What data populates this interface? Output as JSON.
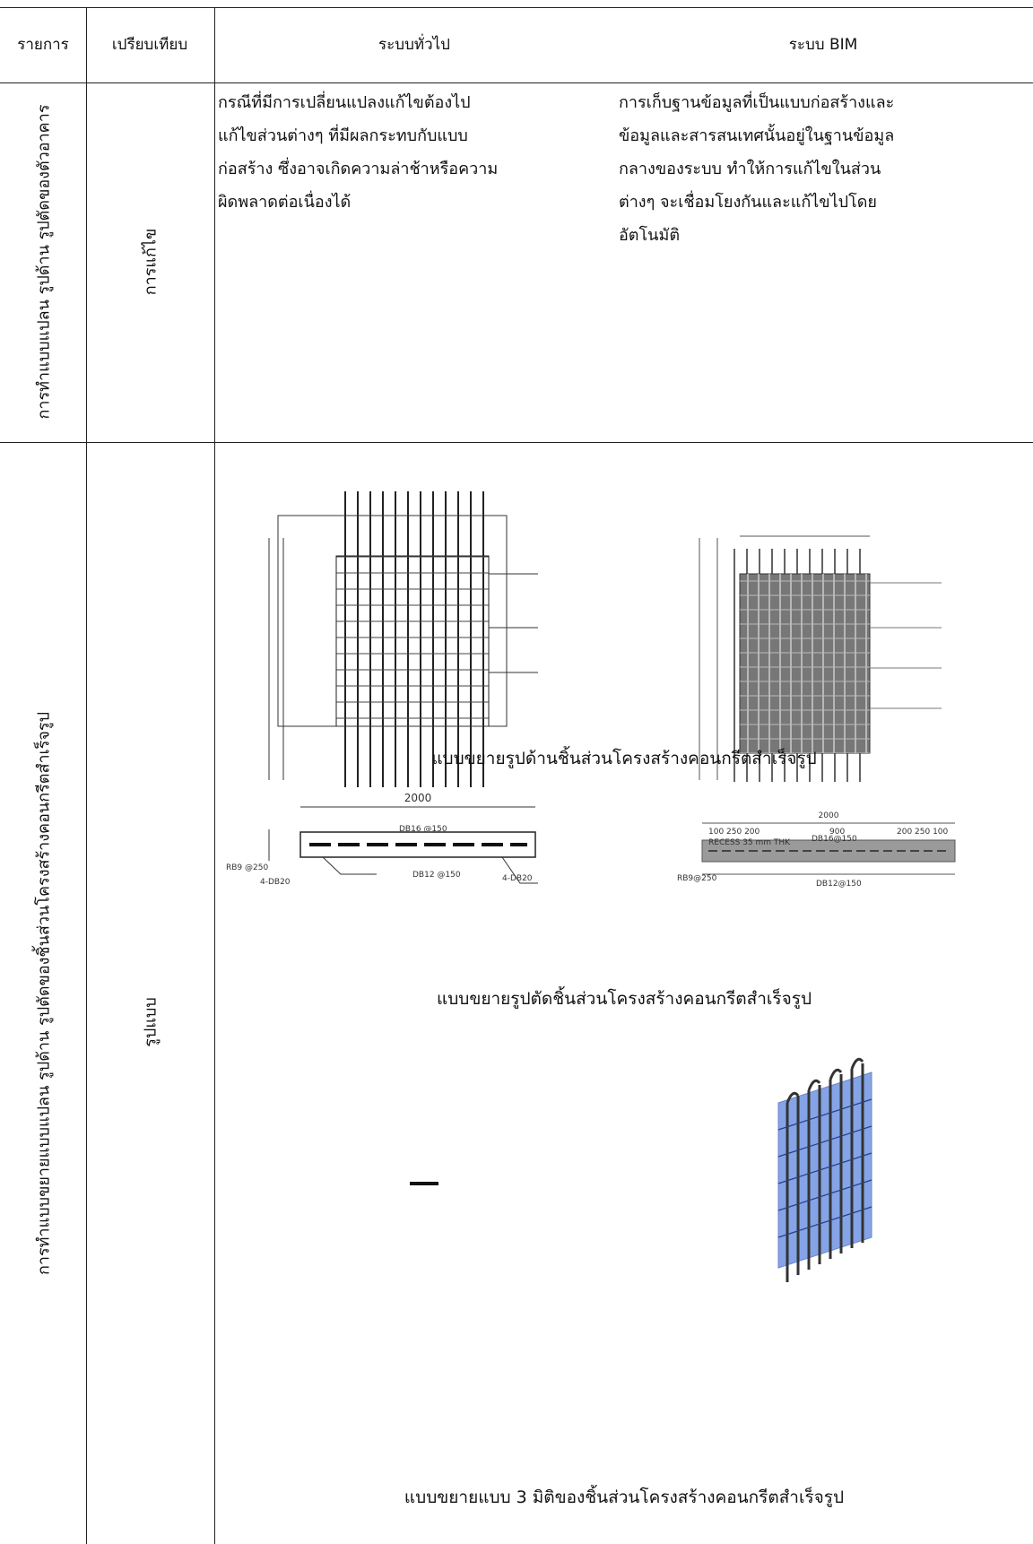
{
  "table": {
    "headers": [
      "รายการ",
      "เปรียบเทียบ",
      "ระบบทั่วไป",
      "ระบบ BIM"
    ],
    "rows": [
      {
        "item": "การทำแบบแปลน รูปด้าน รูปตัดของตัวอาคาร",
        "aspect": "การแก้ไข",
        "general": [
          "กรณีที่มีการเปลี่ยนแปลงแก้ไขต้องไป",
          "แก้ไขส่วนต่างๆ ที่มีผลกระทบกับแบบ",
          "ก่อสร้าง ซึ่งอาจเกิดความล่าช้าหรือความ",
          "ผิดพลาดต่อเนื่องได้"
        ],
        "bim": [
          "การเก็บฐานข้อมูลที่เป็นแบบก่อสร้างและ",
          "ข้อมูลและสารสนเทศนั้นอยู่ในฐานข้อมูล",
          "กลางของระบบ ทำให้การแก้ไขในส่วน",
          "ต่างๆ จะเชื่อมโยงกันและแก้ไขไปโดย",
          "อัตโนมัติ"
        ]
      },
      {
        "item": "การทำแบบขยายแบบแปลน รูปด้าน รูปตัดของชิ้นส่วนโครงสร้างคอนกรีตสำเร็จรูป",
        "aspect": "รูปแบบ",
        "figures": [
          {
            "caption": "แบบขยายรูปด้านชิ้นส่วนโครงสร้างคอนกรีตสำเร็จรูป"
          },
          {
            "caption": "แบบขยายรูปตัดชิ้นส่วนโครงสร้างคอนกรีตสำเร็จรูป",
            "general_labels": [
              "2000",
              "DB16 @150",
              "DB12 @150",
              "RB9 @250",
              "4-DB20",
              "4-DB20"
            ],
            "bim_labels": [
              "2000",
              "100 250 200",
              "900",
              "200 250 100",
              "DB16@150",
              "DB12@150",
              "RB9@250",
              "RECESS 35 mm THK"
            ]
          },
          {
            "caption": "แบบขยายแบบ 3 มิติของชิ้นส่วนโครงสร้างคอนกรีตสำเร็จรูป"
          }
        ]
      }
    ]
  }
}
